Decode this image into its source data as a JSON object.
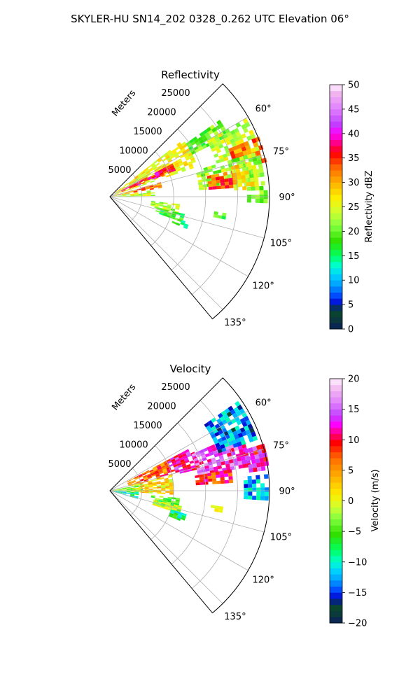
{
  "figure_title": "SKYLER-HU  SN14_202  0328_0.262 UTC Elevation 06°",
  "chart_data": [
    {
      "type": "heatmap",
      "projection": "polar-sector",
      "title": "Reflectivity",
      "radial_label": "Meters",
      "radial_ticks": [
        "5000",
        "10000",
        "15000",
        "20000",
        "25000"
      ],
      "radial_tick_values": [
        5000,
        10000,
        15000,
        20000,
        25000
      ],
      "r_max": 25000,
      "azimuth_ticks": [
        "60°",
        "75°",
        "90°",
        "105°",
        "120°",
        "135°"
      ],
      "azimuth_tick_values": [
        60,
        75,
        90,
        105,
        120,
        135
      ],
      "azimuth_range": [
        45,
        140
      ],
      "grid": true,
      "colorbar": {
        "label": "Reflectivity dBZ",
        "range": [
          0,
          50
        ],
        "ticks": [
          "0",
          "5",
          "10",
          "15",
          "20",
          "25",
          "30",
          "35",
          "40",
          "45",
          "50"
        ],
        "tick_values": [
          0,
          5,
          10,
          15,
          20,
          25,
          30,
          35,
          40,
          45,
          50
        ],
        "stops": [
          {
            "v": 0,
            "c": "#0a1f5c"
          },
          {
            "v": 2,
            "c": "#0b3a3a"
          },
          {
            "v": 4,
            "c": "#0a4a2a"
          },
          {
            "v": 5,
            "c": "#0000cc"
          },
          {
            "v": 7,
            "c": "#0050ff"
          },
          {
            "v": 9,
            "c": "#00a0ff"
          },
          {
            "v": 11,
            "c": "#00d0ff"
          },
          {
            "v": 13,
            "c": "#00ffd0"
          },
          {
            "v": 15,
            "c": "#00ff60"
          },
          {
            "v": 18,
            "c": "#30e000"
          },
          {
            "v": 21,
            "c": "#80ff40"
          },
          {
            "v": 24,
            "c": "#d0ff30"
          },
          {
            "v": 27,
            "c": "#ffee00"
          },
          {
            "v": 30,
            "c": "#ffb000"
          },
          {
            "v": 33,
            "c": "#ff6a00"
          },
          {
            "v": 36,
            "c": "#ff0000"
          },
          {
            "v": 38,
            "c": "#ff0080"
          },
          {
            "v": 40,
            "c": "#ff00ff"
          },
          {
            "v": 42,
            "c": "#c040ff"
          },
          {
            "v": 45,
            "c": "#e080ff"
          },
          {
            "v": 48,
            "c": "#f0b0f0"
          },
          {
            "v": 50,
            "c": "#fff0ff"
          }
        ]
      },
      "regions": [
        {
          "az": [
            52,
            71
          ],
          "r": [
            900,
            14000
          ],
          "value": 26
        },
        {
          "az": [
            62,
            67
          ],
          "r": [
            2000,
            10500
          ],
          "value": 37
        },
        {
          "az": [
            74,
            80
          ],
          "r": [
            500,
            8000
          ],
          "value": 32
        },
        {
          "az": [
            81,
            88
          ],
          "r": [
            600,
            6500
          ],
          "value": 24
        },
        {
          "az": [
            55,
            63
          ],
          "r": [
            14500,
            21000
          ],
          "value": 20
        },
        {
          "az": [
            60,
            72
          ],
          "r": [
            17500,
            24500
          ],
          "value": 24
        },
        {
          "az": [
            68,
            76
          ],
          "r": [
            20000,
            24800
          ],
          "value": 32
        },
        {
          "az": [
            73,
            85
          ],
          "r": [
            14000,
            24000
          ],
          "value": 22
        },
        {
          "az": [
            78,
            85
          ],
          "r": [
            15500,
            19500
          ],
          "value": 34
        },
        {
          "az": [
            76,
            87
          ],
          "r": [
            19500,
            23000
          ],
          "value": 27
        },
        {
          "az": [
            86,
            92
          ],
          "r": [
            21500,
            24500
          ],
          "value": 21
        },
        {
          "az": [
            96,
            103
          ],
          "r": [
            6500,
            11000
          ],
          "value": 23
        },
        {
          "az": [
            103,
            109
          ],
          "r": [
            7500,
            11500
          ],
          "value": 18
        },
        {
          "az": [
            108,
            112
          ],
          "r": [
            10500,
            12500
          ],
          "value": 16
        },
        {
          "az": [
            98,
            100
          ],
          "r": [
            16500,
            18000
          ],
          "value": 18
        }
      ]
    },
    {
      "type": "heatmap",
      "projection": "polar-sector",
      "title": "Velocity",
      "radial_label": "Meters",
      "radial_ticks": [
        "5000",
        "10000",
        "15000",
        "20000",
        "25000"
      ],
      "radial_tick_values": [
        5000,
        10000,
        15000,
        20000,
        25000
      ],
      "r_max": 25000,
      "azimuth_ticks": [
        "60°",
        "75°",
        "90°",
        "105°",
        "120°",
        "135°"
      ],
      "azimuth_tick_values": [
        60,
        75,
        90,
        105,
        120,
        135
      ],
      "azimuth_range": [
        45,
        140
      ],
      "grid": true,
      "colorbar": {
        "label": "Velocity (m/s)",
        "range": [
          -20,
          20
        ],
        "ticks": [
          "−20",
          "−15",
          "−10",
          "−5",
          "0",
          "5",
          "10",
          "15",
          "20"
        ],
        "tick_values": [
          -20,
          -15,
          -10,
          -5,
          0,
          5,
          10,
          15,
          20
        ],
        "stops": [
          {
            "v": -20,
            "c": "#0a1f5c"
          },
          {
            "v": -18.5,
            "c": "#0b3a3a"
          },
          {
            "v": -17,
            "c": "#0a4a2a"
          },
          {
            "v": -16,
            "c": "#0000cc"
          },
          {
            "v": -14.5,
            "c": "#0050ff"
          },
          {
            "v": -13,
            "c": "#00a0ff"
          },
          {
            "v": -11.5,
            "c": "#00d0ff"
          },
          {
            "v": -10,
            "c": "#00ffd0"
          },
          {
            "v": -8,
            "c": "#00ff60"
          },
          {
            "v": -5.5,
            "c": "#30e000"
          },
          {
            "v": -3,
            "c": "#80ff40"
          },
          {
            "v": -1,
            "c": "#d0ff30"
          },
          {
            "v": 1,
            "c": "#ffee00"
          },
          {
            "v": 4,
            "c": "#ffb000"
          },
          {
            "v": 7,
            "c": "#ff6a00"
          },
          {
            "v": 9.5,
            "c": "#ff0000"
          },
          {
            "v": 11,
            "c": "#ff0080"
          },
          {
            "v": 12.5,
            "c": "#ff00ff"
          },
          {
            "v": 14,
            "c": "#c040ff"
          },
          {
            "v": 16,
            "c": "#e080ff"
          },
          {
            "v": 18,
            "c": "#f0b0f0"
          },
          {
            "v": 20,
            "c": "#fff0ff"
          }
        ]
      },
      "regions": [
        {
          "az": [
            78,
            92
          ],
          "r": [
            0,
            5000
          ],
          "value": -3
        },
        {
          "az": [
            92,
            105
          ],
          "r": [
            0,
            4000
          ],
          "value": -9
        },
        {
          "az": [
            62,
            76
          ],
          "r": [
            3000,
            10000
          ],
          "value": 7
        },
        {
          "az": [
            76,
            92
          ],
          "r": [
            3500,
            10000
          ],
          "value": 2
        },
        {
          "az": [
            62,
            75
          ],
          "r": [
            10000,
            14500
          ],
          "value": 12
        },
        {
          "az": [
            66,
            80
          ],
          "r": [
            14000,
            22000
          ],
          "value": 14
        },
        {
          "az": [
            80,
            86
          ],
          "r": [
            13500,
            19000
          ],
          "value": 9
        },
        {
          "az": [
            73,
            82
          ],
          "r": [
            22000,
            24800
          ],
          "value": 12
        },
        {
          "az": [
            55,
            70
          ],
          "r": [
            18000,
            24500
          ],
          "value": -13
        },
        {
          "az": [
            84,
            92
          ],
          "r": [
            21000,
            24500
          ],
          "value": -12
        },
        {
          "az": [
            96,
            103
          ],
          "r": [
            6500,
            10500
          ],
          "value": -5
        },
        {
          "az": [
            102,
            108
          ],
          "r": [
            7000,
            11000
          ],
          "value": -2
        },
        {
          "az": [
            107,
            112
          ],
          "r": [
            10000,
            12000
          ],
          "value": -8
        },
        {
          "az": [
            98,
            100
          ],
          "r": [
            16000,
            17500
          ],
          "value": 2
        }
      ]
    }
  ]
}
